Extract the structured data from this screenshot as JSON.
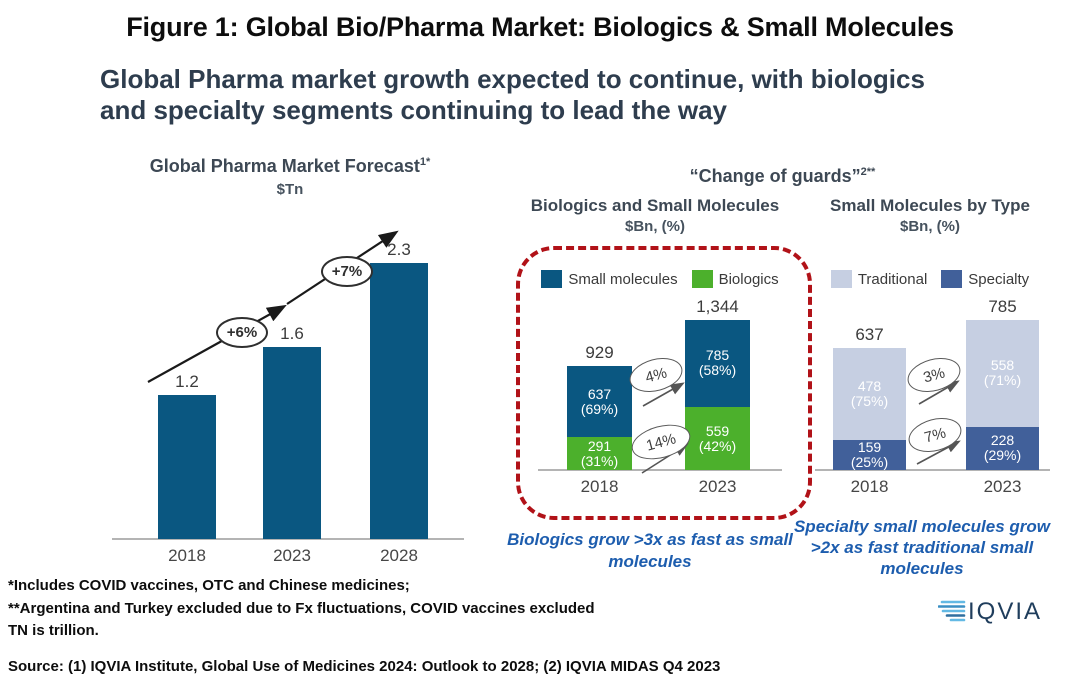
{
  "figure_title": "Figure 1: Global Bio/Pharma Market: Biologics & Small Molecules",
  "subtitle_lines": [
    "Global Pharma market growth expected to continue, with biologics",
    "and specialty segments continuing to lead the way"
  ],
  "group_title": "“Change of guards”",
  "group_title_sup": "2**",
  "chart_data": [
    {
      "type": "bar",
      "title": "Global Pharma Market Forecast",
      "title_sup": "1*",
      "unit": "$Tn",
      "categories": [
        "2018",
        "2023",
        "2028"
      ],
      "values": [
        1.2,
        1.6,
        2.3
      ],
      "growth": [
        "+6%",
        "+7%"
      ],
      "bar_color": "#0a5781",
      "ylim": [
        0,
        2.5
      ],
      "grid": false,
      "legend_position": "none"
    },
    {
      "type": "stacked-bar",
      "title": "Biologics and Small Molecules",
      "unit": "$Bn, (%)",
      "categories": [
        "2018",
        "2023"
      ],
      "totals": [
        "929",
        "1,344"
      ],
      "series": [
        {
          "name": "Small molecules",
          "color": "#0a5781",
          "values": [
            637,
            785
          ],
          "pct": [
            "(69%)",
            "(58%)"
          ]
        },
        {
          "name": "Biologics",
          "color": "#4cb02c",
          "values": [
            291,
            559
          ],
          "pct": [
            "(31%)",
            "(42%)"
          ]
        }
      ],
      "growth": [
        "4%",
        "14%"
      ],
      "callout": "Biologics grow >3x as fast as small molecules",
      "highlighted_with_red_dashed_border": true,
      "legend_position": "top"
    },
    {
      "type": "stacked-bar",
      "title": "Small Molecules by Type",
      "unit": "$Bn, (%)",
      "categories": [
        "2018",
        "2023"
      ],
      "totals": [
        "637",
        "785"
      ],
      "series": [
        {
          "name": "Traditional",
          "color": "#c6cfe2",
          "values": [
            478,
            558
          ],
          "pct": [
            "(75%)",
            "(71%)"
          ]
        },
        {
          "name": "Specialty",
          "color": "#41609a",
          "values": [
            159,
            228
          ],
          "pct": [
            "(25%)",
            "(29%)"
          ]
        }
      ],
      "growth": [
        "3%",
        "7%"
      ],
      "callout": "Specialty small molecules grow >2x as fast traditional small molecules",
      "legend_position": "top"
    }
  ],
  "footnotes": [
    "*Includes COVID vaccines, OTC and Chinese medicines;",
    "**Argentina and Turkey excluded due to Fx fluctuations, COVID vaccines excluded",
    "TN is trillion."
  ],
  "source": "Source: (1) IQVIA Institute, Global Use of Medicines 2024: Outlook to 2028; (2) IQVIA MIDAS Q4 2023",
  "logo_text": "IQVIA",
  "colors": {
    "small_molecules_blue": "#0a5781",
    "biologics_green": "#4cb02c",
    "traditional_light_blue": "#c6cfe2",
    "specialty_blue": "#41609a",
    "highlight_dashed_red": "#b11218",
    "callout_blue": "#1d5dae",
    "heading_navy": "#2e3d4e"
  }
}
